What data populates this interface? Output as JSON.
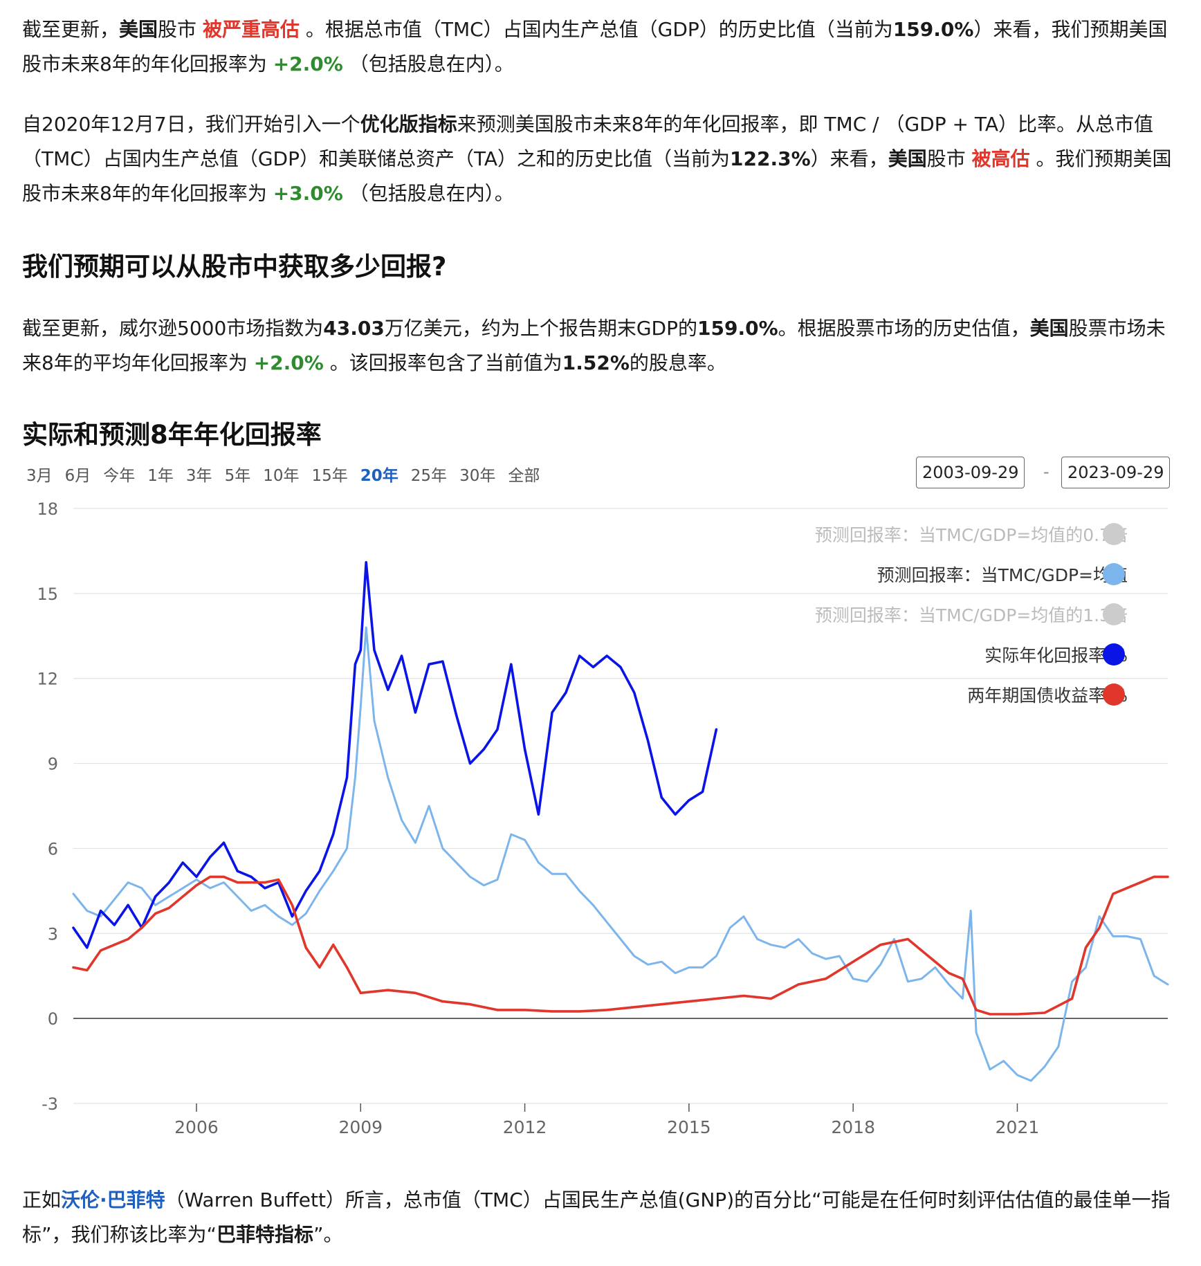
{
  "p1": {
    "a": "截至更新，",
    "b": "美国",
    "c": "股市 ",
    "d": "被严重高估",
    "e": " 。根据总市值（TMC）占国内生产总值（GDP）的历史比值（当前为",
    "f": "159.0%",
    "g": "）来看，我们预期美国股市未来8年的年化回报率为 ",
    "h": "+2.0%",
    "i": " （包括股息在内）。"
  },
  "p2": {
    "a": "自2020年12月7日，我们开始引入一个",
    "b": "优化版指标",
    "c": "来预测美国股市未来8年的年化回报率，即 TMC / （GDP + TA）比率。从总市值（TMC）占国内生产总值（GDP）和美联储总资产（TA）之和的历史比值（当前为",
    "d": "122.3%",
    "e": "）来看，",
    "f": "美国",
    "g": "股市 ",
    "h": "被高估",
    "i": " 。我们预期美国股市未来8年的年化回报率为 ",
    "j": "+3.0%",
    "k": " （包括股息在内）。"
  },
  "heading1": "我们预期可以从股市中获取多少回报?",
  "p3": {
    "a": "截至更新，威尔逊5000市场指数为",
    "b": "43.03",
    "c": "万亿美元，约为上个报告期末GDP的",
    "d": "159.0%",
    "e": "。根据股票市场的历史估值，",
    "f": "美国",
    "g": "股票市场未来8年的平均年化回报率为 ",
    "h": "+2.0%",
    "i": " 。该回报率包含了当前值为",
    "j": "1.52%",
    "k": "的股息率。"
  },
  "heading2": "实际和预测8年年化回报率",
  "range_buttons": [
    "3月",
    "6月",
    "今年",
    "1年",
    "3年",
    "5年",
    "10年",
    "15年",
    "20年",
    "25年",
    "30年",
    "全部"
  ],
  "active_range": "20年",
  "date_from": "2003-09-29",
  "date_sep": "-",
  "date_to": "2023-09-29",
  "legend": [
    {
      "label": "预测回报率：当TMC/GDP=均值的0.7倍",
      "color": "#cccccc",
      "faded": true
    },
    {
      "label": "预测回报率：当TMC/GDP=均值",
      "color": "#7cb5ec",
      "faded": false
    },
    {
      "label": "预测回报率：当TMC/GDP=均值的1.3倍",
      "color": "#cccccc",
      "faded": true
    },
    {
      "label": "实际年化回报率 %",
      "color": "#0a14e6",
      "faded": false
    },
    {
      "label": "两年期国债收益率 %",
      "color": "#e0362b",
      "faded": false
    }
  ],
  "footer": {
    "a": "正如",
    "b": "沃伦·巴菲特",
    "c": "（Warren Buffett）所言，总市值（TMC）占国民生产总值(GNP)的百分比“可能是在任何时刻评估估值的最佳单一指标”，我们称该比率为“",
    "d": "巴菲特指标",
    "e": "”。"
  },
  "chart_data": {
    "type": "line",
    "title": "实际和预测8年年化回报率",
    "ylim": [
      -3,
      18
    ],
    "y_ticks": [
      -3,
      0,
      3,
      6,
      9,
      12,
      15,
      18
    ],
    "x_range": [
      2003.75,
      2023.75
    ],
    "x_ticks": [
      "2006",
      "2009",
      "2012",
      "2015",
      "2018",
      "2021"
    ],
    "grid": true,
    "legend_position": "top-right",
    "series": [
      {
        "name": "预测回报率：当TMC/GDP=均值",
        "color": "#7cb5ec",
        "x": [
          2003.75,
          2004.0,
          2004.25,
          2004.5,
          2004.75,
          2005.0,
          2005.25,
          2005.5,
          2005.75,
          2006.0,
          2006.25,
          2006.5,
          2006.75,
          2007.0,
          2007.25,
          2007.5,
          2007.75,
          2008.0,
          2008.25,
          2008.5,
          2008.75,
          2008.9,
          2009.0,
          2009.1,
          2009.25,
          2009.5,
          2009.75,
          2010.0,
          2010.25,
          2010.5,
          2010.75,
          2011.0,
          2011.25,
          2011.5,
          2011.75,
          2012.0,
          2012.25,
          2012.5,
          2012.75,
          2013.0,
          2013.25,
          2013.5,
          2013.75,
          2014.0,
          2014.25,
          2014.5,
          2014.75,
          2015.0,
          2015.25,
          2015.5,
          2015.75,
          2016.0,
          2016.25,
          2016.5,
          2016.75,
          2017.0,
          2017.25,
          2017.5,
          2017.75,
          2018.0,
          2018.25,
          2018.5,
          2018.75,
          2019.0,
          2019.25,
          2019.5,
          2019.75,
          2020.0,
          2020.15,
          2020.25,
          2020.5,
          2020.75,
          2021.0,
          2021.25,
          2021.5,
          2021.75,
          2022.0,
          2022.25,
          2022.5,
          2022.75,
          2023.0,
          2023.25,
          2023.5,
          2023.75
        ],
        "values": [
          4.4,
          3.8,
          3.6,
          4.2,
          4.8,
          4.6,
          4.0,
          4.3,
          4.6,
          4.9,
          4.6,
          4.8,
          4.3,
          3.8,
          4.0,
          3.6,
          3.3,
          3.7,
          4.5,
          5.2,
          6.0,
          8.5,
          11.0,
          13.8,
          10.5,
          8.5,
          7.0,
          6.2,
          7.5,
          6.0,
          5.5,
          5.0,
          4.7,
          4.9,
          6.5,
          6.3,
          5.5,
          5.1,
          5.1,
          4.5,
          4.0,
          3.4,
          2.8,
          2.2,
          1.9,
          2.0,
          1.6,
          1.8,
          1.8,
          2.2,
          3.2,
          3.6,
          2.8,
          2.6,
          2.5,
          2.8,
          2.3,
          2.1,
          2.2,
          1.4,
          1.3,
          1.9,
          2.8,
          1.3,
          1.4,
          1.8,
          1.2,
          0.7,
          3.8,
          -0.5,
          -1.8,
          -1.5,
          -2.0,
          -2.2,
          -1.7,
          -1.0,
          1.3,
          1.8,
          3.6,
          2.9,
          2.9,
          2.8,
          1.5,
          1.2
        ]
      },
      {
        "name": "实际年化回报率 %",
        "color": "#0a14e6",
        "x": [
          2003.75,
          2004.0,
          2004.25,
          2004.5,
          2004.75,
          2005.0,
          2005.25,
          2005.5,
          2005.75,
          2006.0,
          2006.25,
          2006.5,
          2006.75,
          2007.0,
          2007.25,
          2007.5,
          2007.75,
          2008.0,
          2008.25,
          2008.5,
          2008.75,
          2008.9,
          2009.0,
          2009.1,
          2009.25,
          2009.5,
          2009.75,
          2010.0,
          2010.25,
          2010.5,
          2010.75,
          2011.0,
          2011.25,
          2011.5,
          2011.75,
          2012.0,
          2012.25,
          2012.5,
          2012.75,
          2013.0,
          2013.25,
          2013.5,
          2013.75,
          2014.0,
          2014.25,
          2014.5,
          2014.75,
          2015.0,
          2015.25,
          2015.5
        ],
        "values": [
          3.2,
          2.5,
          3.8,
          3.3,
          4.0,
          3.2,
          4.3,
          4.8,
          5.5,
          5.0,
          5.7,
          6.2,
          5.2,
          5.0,
          4.6,
          4.8,
          3.6,
          4.5,
          5.2,
          6.5,
          8.5,
          12.5,
          13.0,
          16.1,
          13.0,
          11.6,
          12.8,
          10.8,
          12.5,
          12.6,
          10.7,
          9.0,
          9.5,
          10.2,
          12.5,
          9.5,
          7.2,
          10.8,
          11.5,
          12.8,
          12.4,
          12.8,
          12.4,
          11.5,
          9.8,
          7.8,
          7.2,
          7.7,
          8.0,
          10.2
        ]
      },
      {
        "name": "两年期国债收益率 %",
        "color": "#e0362b",
        "x": [
          2003.75,
          2004.0,
          2004.25,
          2004.5,
          2004.75,
          2005.0,
          2005.25,
          2005.5,
          2005.75,
          2006.0,
          2006.25,
          2006.5,
          2006.75,
          2007.0,
          2007.25,
          2007.5,
          2007.75,
          2008.0,
          2008.25,
          2008.5,
          2008.75,
          2009.0,
          2009.5,
          2010.0,
          2010.5,
          2011.0,
          2011.5,
          2012.0,
          2012.5,
          2013.0,
          2013.5,
          2014.0,
          2014.5,
          2015.0,
          2015.5,
          2016.0,
          2016.5,
          2017.0,
          2017.5,
          2018.0,
          2018.5,
          2019.0,
          2019.25,
          2019.5,
          2019.75,
          2020.0,
          2020.25,
          2020.5,
          2020.75,
          2021.0,
          2021.5,
          2022.0,
          2022.25,
          2022.5,
          2022.75,
          2023.0,
          2023.25,
          2023.5,
          2023.75
        ],
        "values": [
          1.8,
          1.7,
          2.4,
          2.6,
          2.8,
          3.2,
          3.7,
          3.9,
          4.3,
          4.7,
          5.0,
          5.0,
          4.8,
          4.8,
          4.8,
          4.9,
          4.0,
          2.5,
          1.8,
          2.6,
          1.8,
          0.9,
          1.0,
          0.9,
          0.6,
          0.5,
          0.3,
          0.3,
          0.25,
          0.25,
          0.3,
          0.4,
          0.5,
          0.6,
          0.7,
          0.8,
          0.7,
          1.2,
          1.4,
          2.0,
          2.6,
          2.8,
          2.4,
          2.0,
          1.6,
          1.4,
          0.3,
          0.15,
          0.15,
          0.15,
          0.2,
          0.7,
          2.5,
          3.2,
          4.4,
          4.6,
          4.8,
          5.0,
          5.0
        ]
      }
    ]
  }
}
